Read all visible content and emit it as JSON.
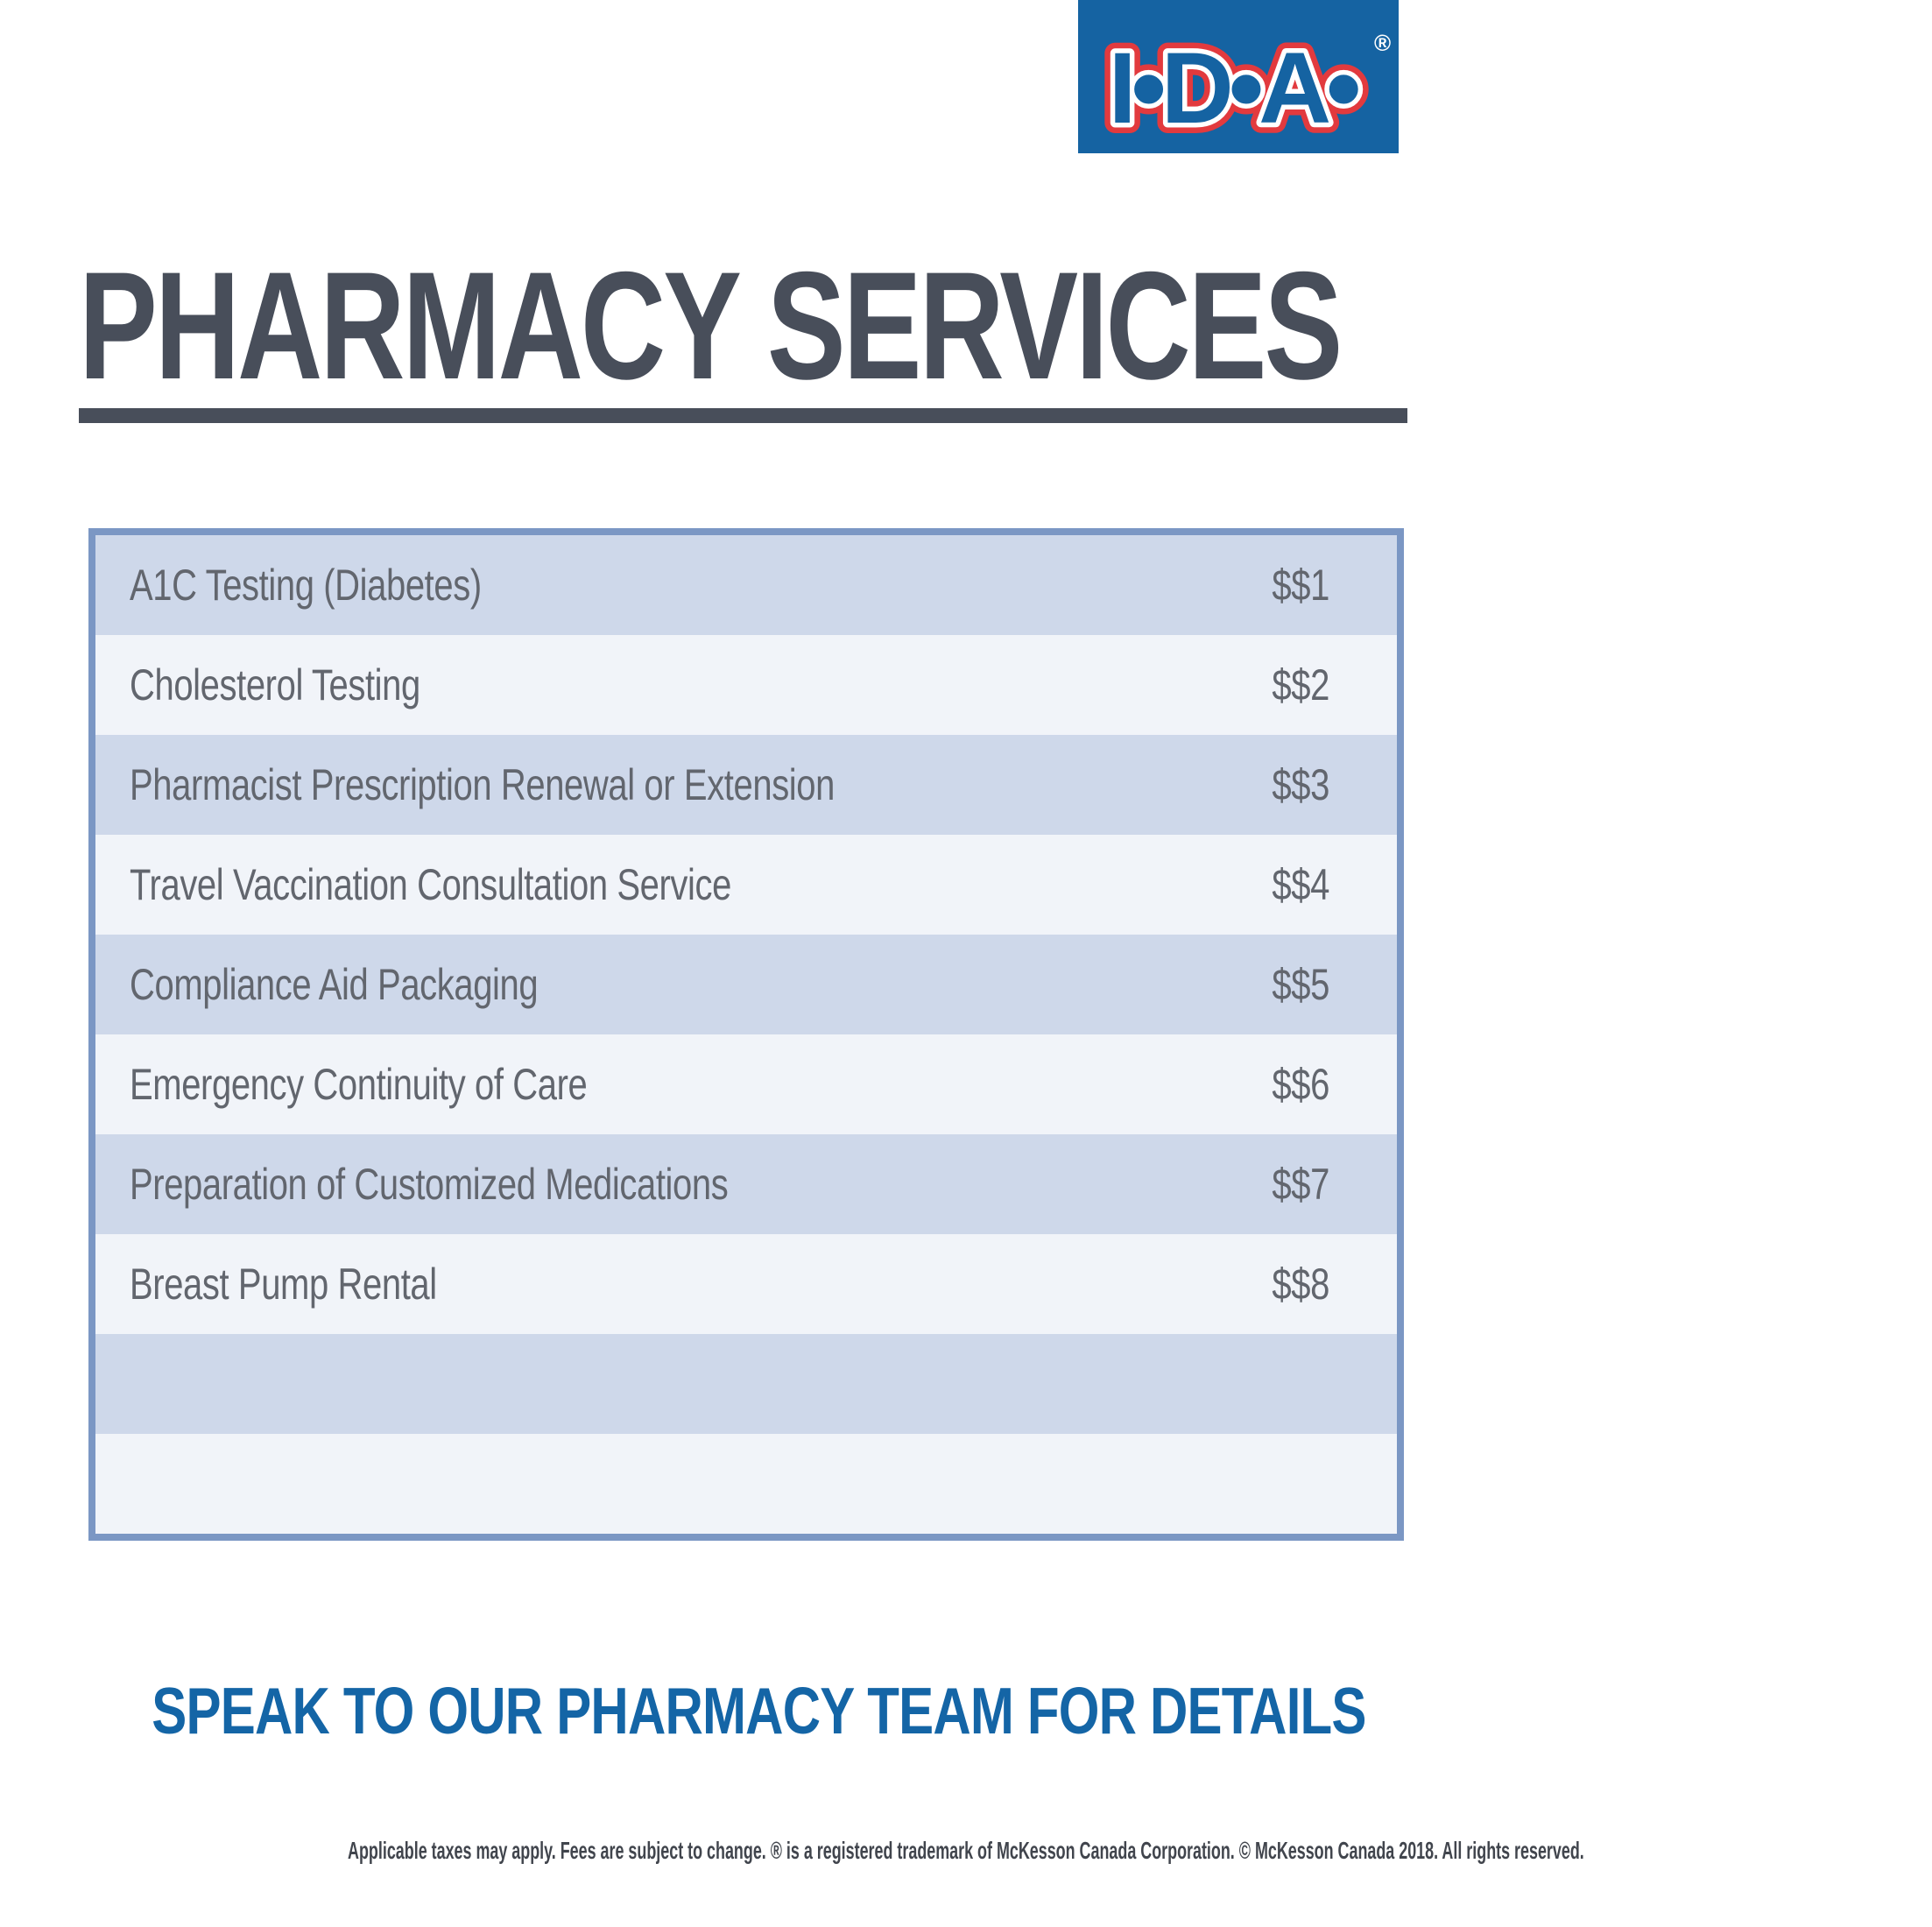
{
  "page": {
    "logo": {
      "brand": "I•D•A•",
      "registered_mark": "®",
      "bg_color": "#1563A2",
      "letter_fill_color": "#1563A2",
      "outline_red": "#E23A3E",
      "outline_white": "#FFFFFF"
    },
    "title": "PHARMACY SERVICES",
    "title_color": "#484E5A",
    "table": {
      "border_color": "#7B97C4",
      "row_odd_color": "#CED8EA",
      "row_even_color": "#F1F4F9",
      "text_color": "#62666E",
      "rows": [
        {
          "service": "A1C Testing (Diabetes)",
          "price": "$$1"
        },
        {
          "service": "Cholesterol Testing",
          "price": "$$2"
        },
        {
          "service": "Pharmacist Prescription Renewal or Extension",
          "price": "$$3"
        },
        {
          "service": "Travel Vaccination Consultation Service",
          "price": "$$4"
        },
        {
          "service": "Compliance Aid Packaging",
          "price": "$$5"
        },
        {
          "service": "Emergency Continuity of Care",
          "price": "$$6"
        },
        {
          "service": "Preparation of Customized Medications",
          "price": "$$7"
        },
        {
          "service": "Breast Pump Rental",
          "price": "$$8"
        },
        {
          "service": "",
          "price": ""
        },
        {
          "service": "",
          "price": ""
        }
      ]
    },
    "cta": "SPEAK TO OUR PHARMACY TEAM FOR DETAILS",
    "cta_color": "#1465A6",
    "disclaimer": "Applicable taxes may apply. Fees are subject to change. ® is a registered trademark of McKesson Canada Corporation. © McKesson Canada 2018. All rights reserved.",
    "disclaimer_color": "#41454D"
  }
}
